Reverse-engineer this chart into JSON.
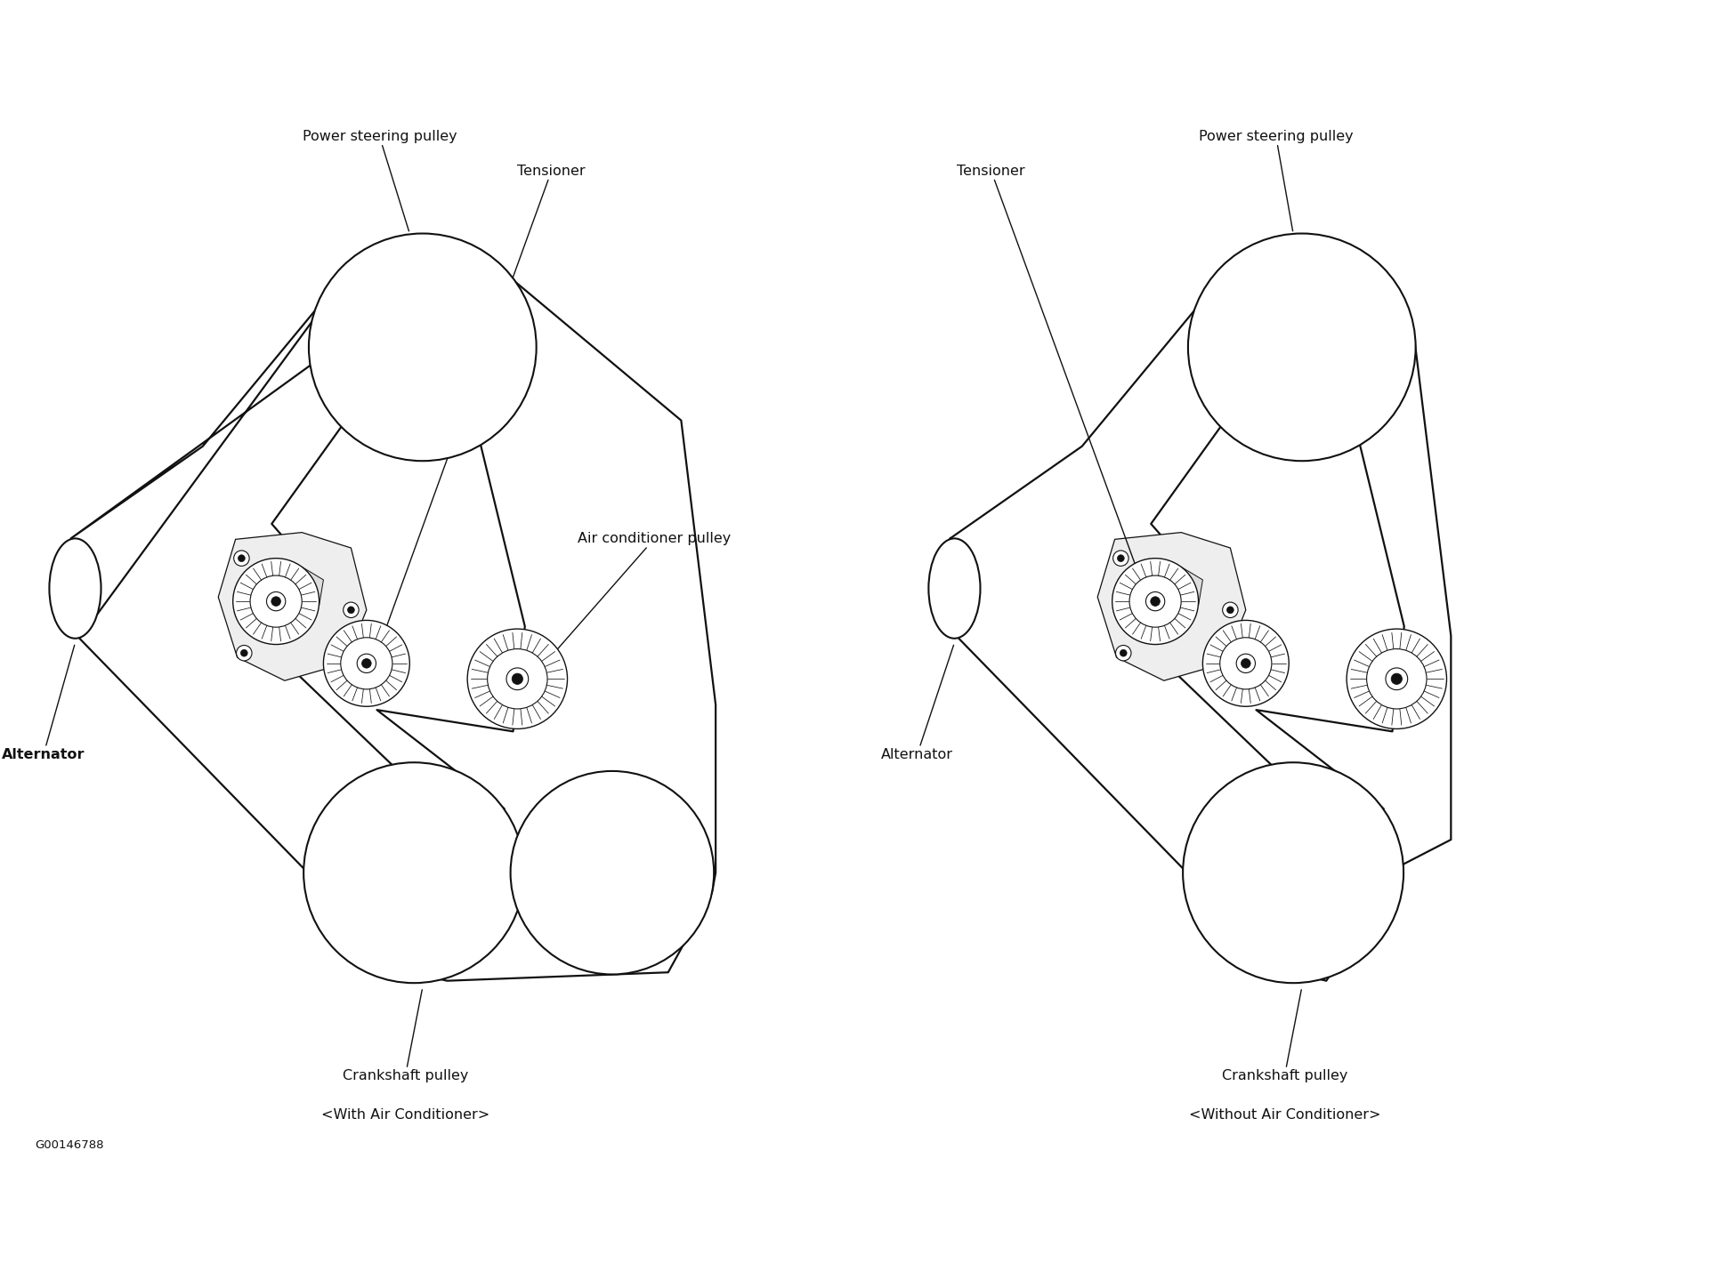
{
  "bg_color": "#ffffff",
  "line_color": "#111111",
  "footer": "G00146788",
  "font_family": "DejaVu Sans",
  "figsize": [
    19.45,
    14.2
  ],
  "dpi": 100,
  "lw_belt": 1.6,
  "lw_pulley": 1.5,
  "lw_thin": 0.9,
  "d1_ox": 0.3,
  "d1_ps": [
    4.6,
    8.7,
    1.35
  ],
  "d1_alt": [
    0.55,
    5.8,
    0.28,
    0.5
  ],
  "d1_crank": [
    4.55,
    2.6,
    1.28
  ],
  "d1_acp": [
    6.85,
    2.6,
    1.18
  ],
  "d1_idl1": [
    3.15,
    5.75,
    0.52
  ],
  "d1_idl2": [
    4.05,
    5.1,
    0.52
  ],
  "d1_acidl": [
    5.7,
    4.85,
    0.6
  ],
  "d2_ox": 10.5,
  "d2_ps": [
    4.6,
    8.7,
    1.35
  ],
  "d2_alt": [
    0.55,
    5.8,
    0.28,
    0.5
  ],
  "d2_crank": [
    4.55,
    2.6,
    1.28
  ],
  "d2_idl1": [
    3.15,
    5.75,
    0.52
  ],
  "d2_idl2": [
    4.05,
    5.1,
    0.52
  ],
  "d2_idl3": [
    5.7,
    4.85,
    0.6
  ],
  "labels": {
    "ps1": "Power steering pulley",
    "ps2": "Power steering pulley",
    "tensioner": "Tensioner",
    "ac_pulley": "Air conditioner pulley",
    "alt1": "Alternator",
    "alt2": "Alternator",
    "crank1": "Crankshaft pulley",
    "sub1": "<With Air Conditioner>",
    "crank2": "Crankshaft pulley",
    "sub2": "<Without Air Conditioner>",
    "footer": "G00146788"
  }
}
